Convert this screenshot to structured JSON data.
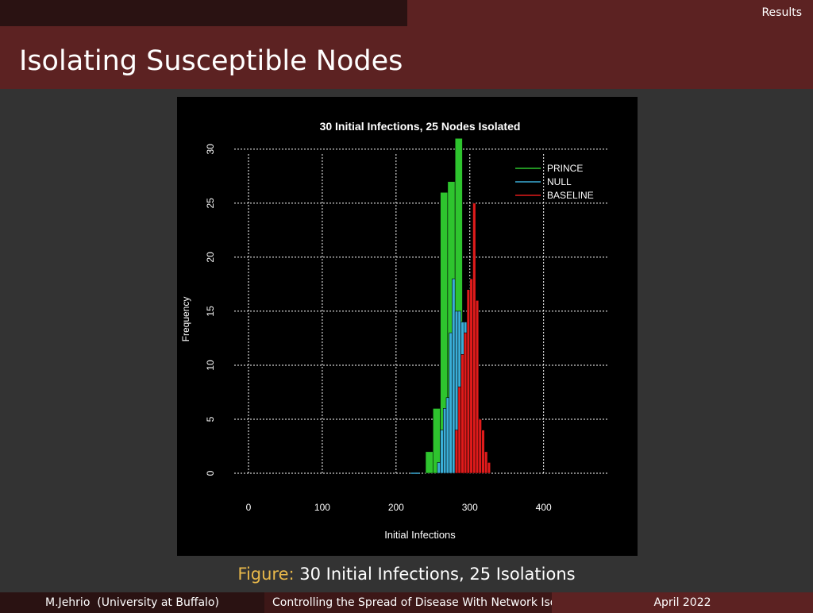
{
  "header": {
    "section": "Results"
  },
  "slide": {
    "title": "Isolating Susceptible Nodes"
  },
  "caption": {
    "label": "Figure:",
    "text": "30 Initial Infections, 25 Isolations"
  },
  "footer": {
    "author": "M.Jehrio  (University at Buffalo)",
    "talk_title": "Controlling the Spread of Disease With Network Isolation",
    "date": "April 2022"
  },
  "chart_data": {
    "type": "bar",
    "title": "30  Initial Infections,  25 Nodes Isolated",
    "xlabel": "Initial Infections",
    "ylabel": "Frequency",
    "xlim": [
      0,
      480
    ],
    "ylim": [
      0,
      33
    ],
    "xticks": [
      0,
      100,
      200,
      300,
      400
    ],
    "yticks": [
      0,
      5,
      10,
      15,
      20,
      25,
      30
    ],
    "grid": true,
    "legend_position": "top-right",
    "series": [
      {
        "name": "PRINCE",
        "color": "#2ec42e",
        "bin_width": 10,
        "bins": [
          {
            "x": 240,
            "y": 2
          },
          {
            "x": 250,
            "y": 6
          },
          {
            "x": 260,
            "y": 26
          },
          {
            "x": 270,
            "y": 27
          },
          {
            "x": 280,
            "y": 31
          }
        ]
      },
      {
        "name": "NULL",
        "color": "#3aaed8",
        "bin_width": 4,
        "bins": [
          {
            "x": 220,
            "y": 0
          },
          {
            "x": 224,
            "y": 0
          },
          {
            "x": 228,
            "y": 0
          },
          {
            "x": 256,
            "y": 1
          },
          {
            "x": 260,
            "y": 4
          },
          {
            "x": 264,
            "y": 6
          },
          {
            "x": 268,
            "y": 7
          },
          {
            "x": 272,
            "y": 13
          },
          {
            "x": 276,
            "y": 18
          },
          {
            "x": 280,
            "y": 15
          },
          {
            "x": 284,
            "y": 15
          },
          {
            "x": 288,
            "y": 14
          },
          {
            "x": 292,
            "y": 14
          }
        ]
      },
      {
        "name": "BASELINE",
        "color": "#e01b1b",
        "bin_width": 4,
        "bins": [
          {
            "x": 280,
            "y": 4
          },
          {
            "x": 284,
            "y": 8
          },
          {
            "x": 288,
            "y": 11
          },
          {
            "x": 292,
            "y": 13
          },
          {
            "x": 296,
            "y": 17
          },
          {
            "x": 300,
            "y": 18
          },
          {
            "x": 304,
            "y": 25
          },
          {
            "x": 308,
            "y": 16
          },
          {
            "x": 312,
            "y": 5
          },
          {
            "x": 316,
            "y": 4
          },
          {
            "x": 320,
            "y": 2
          },
          {
            "x": 324,
            "y": 1
          }
        ]
      }
    ]
  }
}
